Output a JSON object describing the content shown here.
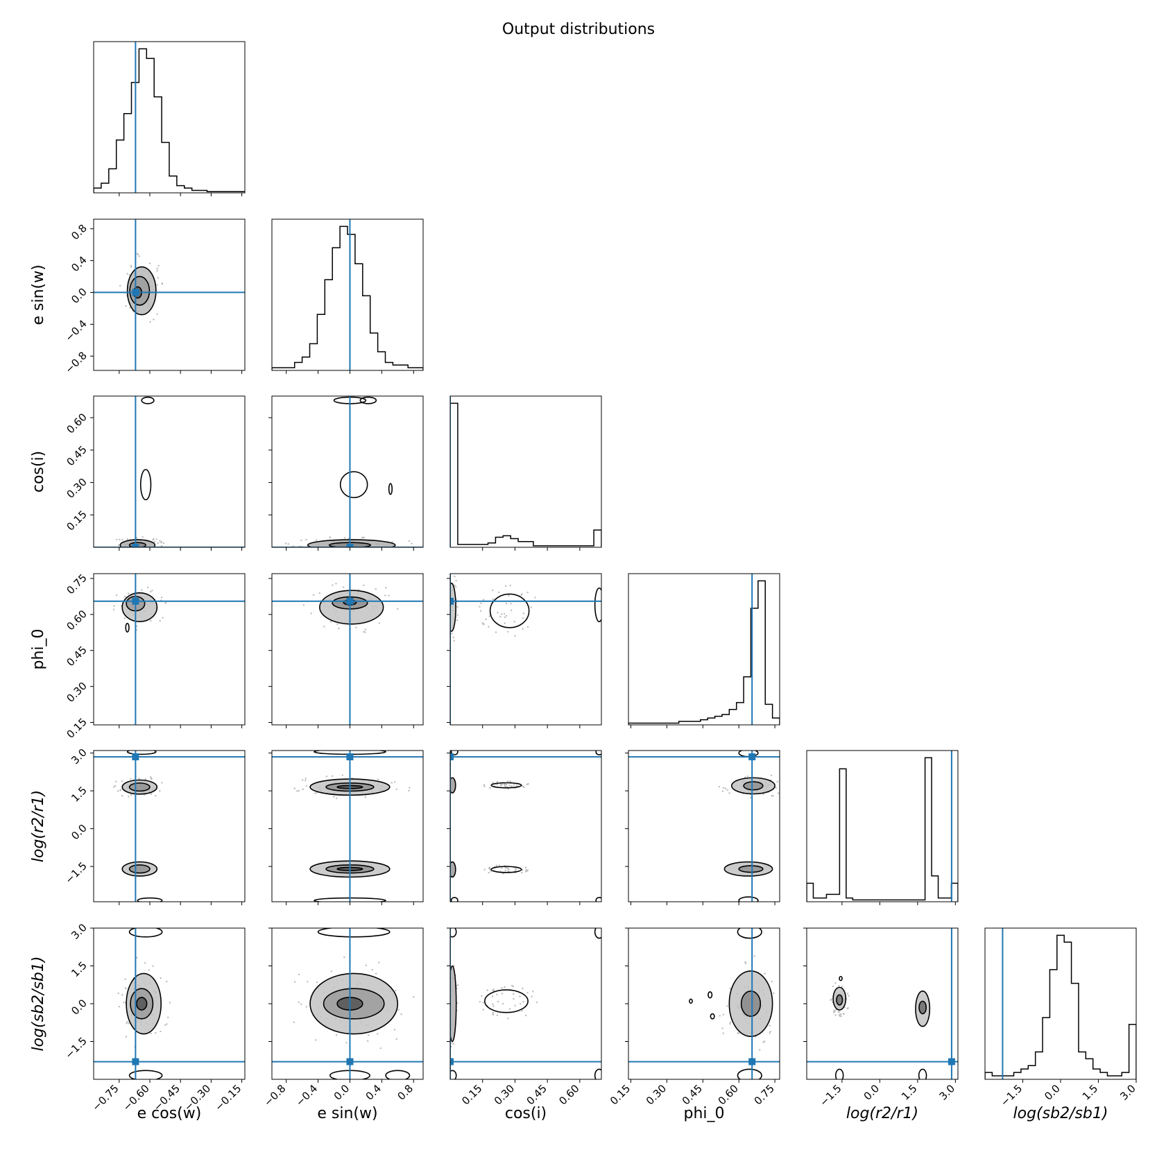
{
  "title": "Output distributions",
  "colors": {
    "truth": "#1f77b4",
    "hist": "#000000",
    "contour": "#000000",
    "fill": "#808080",
    "scatter": "#bbbbbb"
  },
  "chart_data": {
    "type": "corner",
    "title": "Output distributions",
    "grid": false,
    "parameters": [
      {
        "key": "ecosw",
        "label": "e cos(w)",
        "range": [
          -0.875,
          -0.135
        ],
        "ticks": [
          -0.75,
          -0.6,
          -0.45,
          -0.3,
          -0.15
        ],
        "tick_labels": [
          "−0.75",
          "−0.60",
          "−0.45",
          "−0.30",
          "−0.15"
        ]
      },
      {
        "key": "esinw",
        "label": "e sin(w)",
        "range": [
          -0.98,
          0.92
        ],
        "ticks": [
          -0.8,
          -0.4,
          0.0,
          0.4,
          0.8
        ],
        "tick_labels": [
          "−0.8",
          "−0.4",
          "0.0",
          "0.4",
          "0.8"
        ]
      },
      {
        "key": "cosi",
        "label": "cos(i)",
        "range": [
          0.0,
          0.7
        ],
        "ticks": [
          0.15,
          0.3,
          0.45,
          0.6
        ],
        "tick_labels": [
          "0.15",
          "0.30",
          "0.45",
          "0.60"
        ]
      },
      {
        "key": "phi0",
        "label": "phi_0",
        "range": [
          0.14,
          0.77
        ],
        "ticks": [
          0.15,
          0.3,
          0.45,
          0.6,
          0.75
        ],
        "tick_labels": [
          "0.15",
          "0.30",
          "0.45",
          "0.60",
          "0.75"
        ]
      },
      {
        "key": "logr",
        "label": "log(r2/r1)",
        "range": [
          -2.9,
          3.1
        ],
        "ticks": [
          -1.5,
          0.0,
          1.5,
          3.0
        ],
        "tick_labels": [
          "−1.5",
          "0.0",
          "1.5",
          "3.0"
        ]
      },
      {
        "key": "logsb",
        "label": "log(sb2/sb1)",
        "range": [
          -3.0,
          3.0
        ],
        "ticks": [
          -1.5,
          0.0,
          1.5,
          3.0
        ],
        "tick_labels": [
          "−1.5",
          "0.0",
          "1.5",
          "3.0"
        ]
      }
    ],
    "truths": [
      -0.67,
      0.0,
      0.0,
      0.655,
      2.85,
      -2.3
    ],
    "histograms": [
      [
        2,
        4,
        10,
        22,
        33,
        46,
        60,
        56,
        40,
        21,
        7,
        3,
        2,
        1,
        1,
        0.5,
        0.5,
        0.5,
        0.5,
        0.5
      ],
      [
        1,
        1,
        1,
        3,
        5,
        10,
        21,
        34,
        46,
        54,
        51,
        40,
        28,
        14,
        7,
        3,
        2,
        2,
        1,
        1
      ],
      [
        100,
        2,
        2,
        2,
        2,
        3,
        7,
        8,
        6,
        4,
        4,
        1,
        1,
        1,
        1,
        1,
        1,
        1,
        1,
        12
      ],
      [
        1,
        1,
        1,
        1,
        1,
        1,
        1,
        2,
        2,
        2,
        3,
        4,
        5,
        6,
        9,
        13,
        28,
        68,
        84,
        12,
        4
      ],
      [
        10,
        2,
        2,
        4,
        4,
        72,
        2,
        1,
        1,
        1,
        1,
        1,
        1,
        1,
        1,
        1,
        1,
        1,
        78,
        14,
        2,
        2,
        10
      ],
      [
        2,
        1,
        1,
        1,
        2,
        3,
        4,
        8,
        18,
        32,
        42,
        40,
        28,
        8,
        6,
        3,
        2,
        1,
        1,
        2,
        16
      ]
    ],
    "contours": {
      "1-0": [
        {
          "cx": -0.64,
          "cy": 0.02,
          "rx": 0.07,
          "ry": 0.3,
          "fill": 0.35
        },
        {
          "cx": -0.65,
          "cy": 0.02,
          "rx": 0.048,
          "ry": 0.18,
          "fill": 0.5
        },
        {
          "cx": -0.66,
          "cy": 0.0,
          "rx": 0.02,
          "ry": 0.07,
          "fill": 0.8
        }
      ],
      "2-0": [
        {
          "cx": -0.66,
          "cy": 0.01,
          "rx": 0.085,
          "ry": 0.025,
          "fill": 0.4
        },
        {
          "cx": -0.66,
          "cy": 0.01,
          "rx": 0.04,
          "ry": 0.012,
          "fill": 0.6
        },
        {
          "cx": -0.62,
          "cy": 0.29,
          "rx": 0.025,
          "ry": 0.07,
          "fill": 0
        },
        {
          "cx": -0.61,
          "cy": 0.68,
          "rx": 0.03,
          "ry": 0.015,
          "fill": 0
        }
      ],
      "2-1": [
        {
          "cx": 0.02,
          "cy": 0.01,
          "rx": 0.55,
          "ry": 0.025,
          "fill": 0.4
        },
        {
          "cx": 0.0,
          "cy": 0.01,
          "rx": 0.26,
          "ry": 0.012,
          "fill": 0.6
        },
        {
          "cx": 0.05,
          "cy": 0.29,
          "rx": 0.17,
          "ry": 0.06,
          "fill": 0
        },
        {
          "cx": 0.0,
          "cy": 0.68,
          "rx": 0.2,
          "ry": 0.015,
          "fill": 0
        },
        {
          "cx": 0.23,
          "cy": 0.68,
          "rx": 0.1,
          "ry": 0.015,
          "fill": 0
        },
        {
          "cx": 0.51,
          "cy": 0.27,
          "rx": 0.02,
          "ry": 0.025,
          "fill": 0
        }
      ],
      "3-0": [
        {
          "cx": -0.65,
          "cy": 0.63,
          "rx": 0.085,
          "ry": 0.06,
          "fill": 0.3
        },
        {
          "cx": -0.67,
          "cy": 0.645,
          "rx": 0.045,
          "ry": 0.03,
          "fill": 0.5
        },
        {
          "cx": -0.71,
          "cy": 0.545,
          "rx": 0.008,
          "ry": 0.018,
          "fill": 0
        }
      ],
      "3-1": [
        {
          "cx": 0.02,
          "cy": 0.63,
          "rx": 0.4,
          "ry": 0.07,
          "fill": 0.3
        },
        {
          "cx": 0.0,
          "cy": 0.648,
          "rx": 0.22,
          "ry": 0.025,
          "fill": 0.55
        },
        {
          "cx": 0.0,
          "cy": 0.65,
          "rx": 0.08,
          "ry": 0.01,
          "fill": 0.85
        }
      ],
      "3-2": [
        {
          "cx": 0.006,
          "cy": 0.63,
          "rx": 0.02,
          "ry": 0.1,
          "fill": 0.3
        },
        {
          "cx": 0.275,
          "cy": 0.615,
          "rx": 0.09,
          "ry": 0.07,
          "fill": 0
        },
        {
          "cx": 0.69,
          "cy": 0.64,
          "rx": 0.02,
          "ry": 0.07,
          "fill": 0
        }
      ],
      "4-0": [
        {
          "cx": -0.65,
          "cy": 1.65,
          "rx": 0.085,
          "ry": 0.28,
          "fill": 0.3
        },
        {
          "cx": -0.65,
          "cy": 1.65,
          "rx": 0.05,
          "ry": 0.16,
          "fill": 0.55
        },
        {
          "cx": -0.65,
          "cy": -1.6,
          "rx": 0.085,
          "ry": 0.28,
          "fill": 0.3
        },
        {
          "cx": -0.65,
          "cy": -1.6,
          "rx": 0.05,
          "ry": 0.16,
          "fill": 0.55
        },
        {
          "cx": -0.64,
          "cy": 3.05,
          "rx": 0.07,
          "ry": 0.1,
          "fill": 0
        },
        {
          "cx": -0.6,
          "cy": -2.85,
          "rx": 0.06,
          "ry": 0.1,
          "fill": 0
        }
      ],
      "4-1": [
        {
          "cx": 0.0,
          "cy": 1.65,
          "rx": 0.5,
          "ry": 0.32,
          "fill": 0.3
        },
        {
          "cx": 0.0,
          "cy": 1.65,
          "rx": 0.3,
          "ry": 0.16,
          "fill": 0.55
        },
        {
          "cx": 0.0,
          "cy": 1.65,
          "rx": 0.16,
          "ry": 0.06,
          "fill": 0.85
        },
        {
          "cx": 0.0,
          "cy": -1.6,
          "rx": 0.5,
          "ry": 0.32,
          "fill": 0.3
        },
        {
          "cx": 0.0,
          "cy": -1.6,
          "rx": 0.3,
          "ry": 0.16,
          "fill": 0.55
        },
        {
          "cx": 0.0,
          "cy": -1.6,
          "rx": 0.16,
          "ry": 0.06,
          "fill": 0.85
        },
        {
          "cx": 0.0,
          "cy": 3.05,
          "rx": 0.45,
          "ry": 0.1,
          "fill": 0
        },
        {
          "cx": 0.0,
          "cy": -2.85,
          "rx": 0.45,
          "ry": 0.1,
          "fill": 0
        }
      ],
      "4-2": [
        {
          "cx": 0.26,
          "cy": 1.72,
          "rx": 0.07,
          "ry": 0.1,
          "fill": 0
        },
        {
          "cx": 0.26,
          "cy": -1.62,
          "rx": 0.07,
          "ry": 0.12,
          "fill": 0
        },
        {
          "cx": 0.01,
          "cy": 1.72,
          "rx": 0.015,
          "ry": 0.3,
          "fill": 0.5
        },
        {
          "cx": 0.01,
          "cy": -1.62,
          "rx": 0.015,
          "ry": 0.3,
          "fill": 0.5
        },
        {
          "cx": 0.02,
          "cy": 3.05,
          "rx": 0.015,
          "ry": 0.12,
          "fill": 0
        },
        {
          "cx": 0.02,
          "cy": -2.85,
          "rx": 0.015,
          "ry": 0.12,
          "fill": 0
        },
        {
          "cx": 0.69,
          "cy": 3.05,
          "rx": 0.015,
          "ry": 0.12,
          "fill": 0
        },
        {
          "cx": 0.69,
          "cy": -2.85,
          "rx": 0.015,
          "ry": 0.12,
          "fill": 0
        }
      ],
      "4-3": [
        {
          "cx": 0.66,
          "cy": 1.7,
          "rx": 0.09,
          "ry": 0.32,
          "fill": 0.3
        },
        {
          "cx": 0.66,
          "cy": 1.7,
          "rx": 0.04,
          "ry": 0.16,
          "fill": 0.55
        },
        {
          "cx": 0.64,
          "cy": -1.6,
          "rx": 0.1,
          "ry": 0.28,
          "fill": 0.3
        },
        {
          "cx": 0.65,
          "cy": -1.6,
          "rx": 0.05,
          "ry": 0.13,
          "fill": 0.55
        },
        {
          "cx": 0.64,
          "cy": 3.0,
          "rx": 0.04,
          "ry": 0.14,
          "fill": 0
        },
        {
          "cx": 0.64,
          "cy": -2.85,
          "rx": 0.04,
          "ry": 0.14,
          "fill": 0
        }
      ],
      "5-0": [
        {
          "cx": -0.63,
          "cy": 0.0,
          "rx": 0.085,
          "ry": 1.2,
          "fill": 0.3
        },
        {
          "cx": -0.64,
          "cy": 0.0,
          "rx": 0.055,
          "ry": 0.6,
          "fill": 0.5
        },
        {
          "cx": -0.64,
          "cy": 0.0,
          "rx": 0.025,
          "ry": 0.25,
          "fill": 0.85
        },
        {
          "cx": -0.62,
          "cy": 2.85,
          "rx": 0.08,
          "ry": 0.2,
          "fill": 0
        },
        {
          "cx": -0.62,
          "cy": -2.85,
          "rx": 0.08,
          "ry": 0.2,
          "fill": 0
        }
      ],
      "5-1": [
        {
          "cx": 0.05,
          "cy": 0.0,
          "rx": 0.55,
          "ry": 1.2,
          "fill": 0.3
        },
        {
          "cx": 0.05,
          "cy": 0.0,
          "rx": 0.38,
          "ry": 0.6,
          "fill": 0.5
        },
        {
          "cx": 0.0,
          "cy": 0.0,
          "rx": 0.16,
          "ry": 0.25,
          "fill": 0.85
        },
        {
          "cx": 0.05,
          "cy": 2.85,
          "rx": 0.45,
          "ry": 0.2,
          "fill": 0
        },
        {
          "cx": 0.0,
          "cy": -2.85,
          "rx": 0.25,
          "ry": 0.2,
          "fill": 0
        },
        {
          "cx": 0.6,
          "cy": -2.85,
          "rx": 0.15,
          "ry": 0.2,
          "fill": 0
        }
      ],
      "5-2": [
        {
          "cx": 0.01,
          "cy": 0.0,
          "rx": 0.018,
          "ry": 1.5,
          "fill": 0.4
        },
        {
          "cx": 0.26,
          "cy": 0.1,
          "rx": 0.1,
          "ry": 0.45,
          "fill": 0
        },
        {
          "cx": 0.69,
          "cy": 2.85,
          "rx": 0.02,
          "ry": 0.25,
          "fill": 0
        },
        {
          "cx": 0.69,
          "cy": -2.85,
          "rx": 0.02,
          "ry": 0.25,
          "fill": 0
        },
        {
          "cx": 0.01,
          "cy": 2.85,
          "rx": 0.018,
          "ry": 0.2,
          "fill": 0
        },
        {
          "cx": 0.01,
          "cy": -2.85,
          "rx": 0.018,
          "ry": 0.2,
          "fill": 0
        }
      ],
      "5-3": [
        {
          "cx": 0.65,
          "cy": 0.0,
          "rx": 0.09,
          "ry": 1.3,
          "fill": 0.3
        },
        {
          "cx": 0.65,
          "cy": 0.0,
          "rx": 0.04,
          "ry": 0.5,
          "fill": 0.6
        },
        {
          "cx": 0.645,
          "cy": 2.85,
          "rx": 0.05,
          "ry": 0.25,
          "fill": 0
        },
        {
          "cx": 0.645,
          "cy": -2.85,
          "rx": 0.05,
          "ry": 0.25,
          "fill": 0
        },
        {
          "cx": 0.48,
          "cy": 0.35,
          "rx": 0.008,
          "ry": 0.12,
          "fill": 0
        },
        {
          "cx": 0.4,
          "cy": 0.1,
          "rx": 0.006,
          "ry": 0.08,
          "fill": 0
        },
        {
          "cx": 0.49,
          "cy": -0.5,
          "rx": 0.008,
          "ry": 0.1,
          "fill": 0
        }
      ],
      "5-4": [
        {
          "cx": -1.6,
          "cy": 0.2,
          "rx": 0.25,
          "ry": 0.45,
          "fill": 0.3
        },
        {
          "cx": -1.6,
          "cy": 0.15,
          "rx": 0.12,
          "ry": 0.2,
          "fill": 0.7
        },
        {
          "cx": 1.7,
          "cy": -0.2,
          "rx": 0.28,
          "ry": 0.7,
          "fill": 0.3
        },
        {
          "cx": 1.7,
          "cy": -0.15,
          "rx": 0.14,
          "ry": 0.25,
          "fill": 0.75
        },
        {
          "cx": -1.55,
          "cy": 1.0,
          "rx": 0.05,
          "ry": 0.08,
          "fill": 0
        },
        {
          "cx": -1.6,
          "cy": -2.85,
          "rx": 0.15,
          "ry": 0.25,
          "fill": 0
        },
        {
          "cx": 1.7,
          "cy": -2.85,
          "rx": 0.15,
          "ry": 0.25,
          "fill": 0
        }
      ]
    }
  }
}
